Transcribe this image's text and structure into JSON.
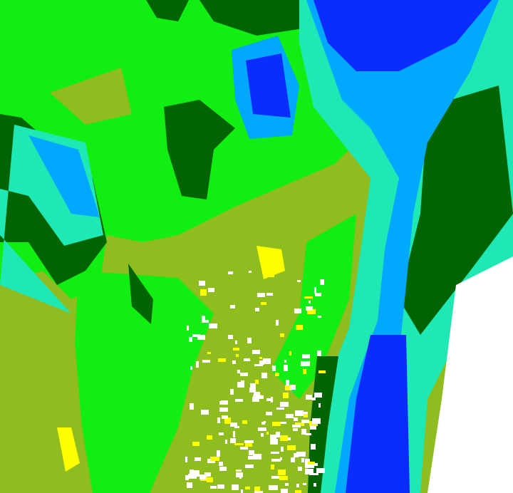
{
  "map": {
    "palette": {
      "olive": "#8fbc1f",
      "bright_green": "#11ee11",
      "dark_green": "#006400",
      "teal": "#1ee8b4",
      "light_blue": "#00a8ff",
      "blue": "#0a2cff",
      "white": "#ffffff",
      "yellow": "#ffff00"
    }
  }
}
